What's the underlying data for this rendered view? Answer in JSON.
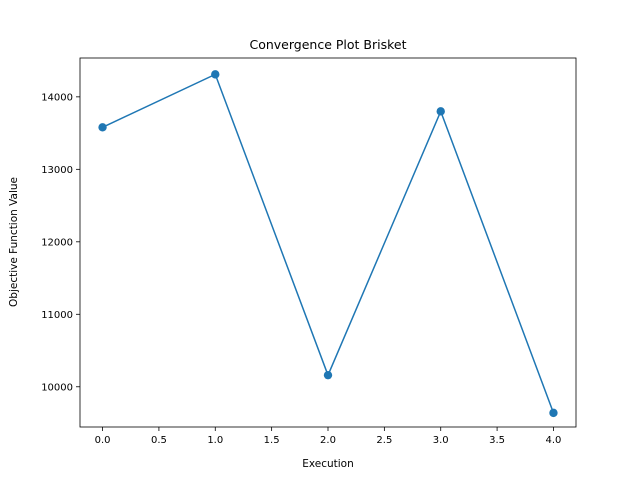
{
  "chart_data": {
    "type": "line",
    "title": "Convergence Plot Brisket",
    "xlabel": "Execution",
    "ylabel": "Objective Function Value",
    "xlim": [
      -0.2,
      4.2
    ],
    "ylim": [
      9445,
      14536
    ],
    "xticks": [
      0.0,
      0.5,
      1.0,
      1.5,
      2.0,
      2.5,
      3.0,
      3.5,
      4.0
    ],
    "xtick_labels": [
      "0.0",
      "0.5",
      "1.0",
      "1.5",
      "2.0",
      "2.5",
      "3.0",
      "3.5",
      "4.0"
    ],
    "yticks": [
      10000,
      11000,
      12000,
      13000,
      14000
    ],
    "ytick_labels": [
      "10000",
      "11000",
      "12000",
      "13000",
      "14000"
    ],
    "grid": false,
    "series": [
      {
        "color": "#1f77b4",
        "marker": "circle",
        "x": [
          0,
          1,
          2,
          3,
          4
        ],
        "y": [
          13580,
          14310,
          10160,
          13800,
          9640
        ]
      }
    ]
  }
}
